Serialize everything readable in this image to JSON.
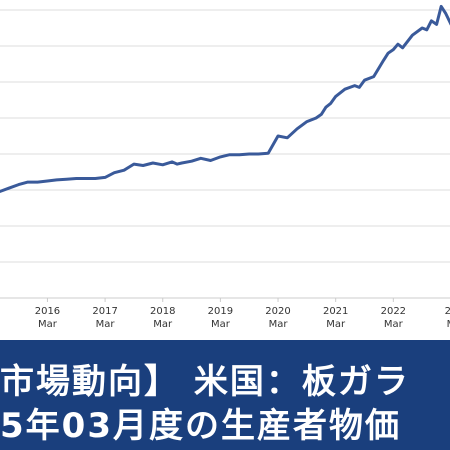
{
  "colors": {
    "line": "#3a5a9a",
    "grid": "#dddddd",
    "banner_bg": "#1a3f7d",
    "banner_text": "#ffffff",
    "axis": "#cccccc"
  },
  "banner": {
    "line1": "市場動向】 米国：板ガラ",
    "line2": "5年03月度の生産者物価"
  },
  "chart_data": {
    "type": "line",
    "title": "",
    "xlabel": "",
    "ylabel": "",
    "grid": true,
    "x_ticks": [
      {
        "year": "2016",
        "month": "Mar",
        "x": 2016.17
      },
      {
        "year": "2017",
        "month": "Mar",
        "x": 2017.17
      },
      {
        "year": "2018",
        "month": "Mar",
        "x": 2018.17
      },
      {
        "year": "2019",
        "month": "Mar",
        "x": 2019.17
      },
      {
        "year": "2020",
        "month": "Mar",
        "x": 2020.17
      },
      {
        "year": "2021",
        "month": "Mar",
        "x": 2021.17
      },
      {
        "year": "2022",
        "month": "Mar",
        "x": 2022.17
      },
      {
        "year": "20",
        "month": "M",
        "x": 2023.17
      }
    ],
    "xlim": [
      2015.0,
      2023.5
    ],
    "ylim": [
      0,
      8
    ],
    "y_gridlines": [
      0,
      1,
      2,
      3,
      4,
      5,
      6,
      7,
      8
    ],
    "series": [
      {
        "x": [
          2015.0,
          2015.17,
          2015.33,
          2015.5,
          2015.67,
          2015.83,
          2016.0,
          2016.17,
          2016.33,
          2016.5,
          2016.67,
          2016.83,
          2017.0,
          2017.17,
          2017.33,
          2017.5,
          2017.67,
          2017.83,
          2018.0,
          2018.17,
          2018.33,
          2018.42,
          2018.5,
          2018.67,
          2018.83,
          2019.0,
          2019.17,
          2019.33,
          2019.5,
          2019.67,
          2019.83,
          2020.0,
          2020.17,
          2020.33,
          2020.5,
          2020.67,
          2020.83,
          2020.92,
          2021.0,
          2021.08,
          2021.17,
          2021.33,
          2021.5,
          2021.58,
          2021.67,
          2021.83,
          2022.0,
          2022.08,
          2022.17,
          2022.25,
          2022.33,
          2022.5,
          2022.67,
          2022.75,
          2022.83,
          2022.92,
          2023.0,
          2023.08,
          2023.17,
          2023.25
        ],
        "y": [
          2.72,
          2.75,
          2.95,
          3.05,
          3.15,
          3.22,
          3.22,
          3.25,
          3.28,
          3.3,
          3.32,
          3.32,
          3.32,
          3.35,
          3.48,
          3.55,
          3.72,
          3.68,
          3.75,
          3.7,
          3.78,
          3.72,
          3.75,
          3.8,
          3.88,
          3.82,
          3.92,
          3.98,
          3.98,
          4.0,
          4.0,
          4.02,
          4.5,
          4.45,
          4.7,
          4.9,
          5.0,
          5.1,
          5.3,
          5.4,
          5.6,
          5.8,
          5.9,
          5.85,
          6.05,
          6.15,
          6.6,
          6.8,
          6.9,
          7.05,
          6.95,
          7.3,
          7.5,
          7.45,
          7.7,
          7.6,
          8.1,
          7.9,
          7.6,
          7.5
        ]
      }
    ]
  }
}
